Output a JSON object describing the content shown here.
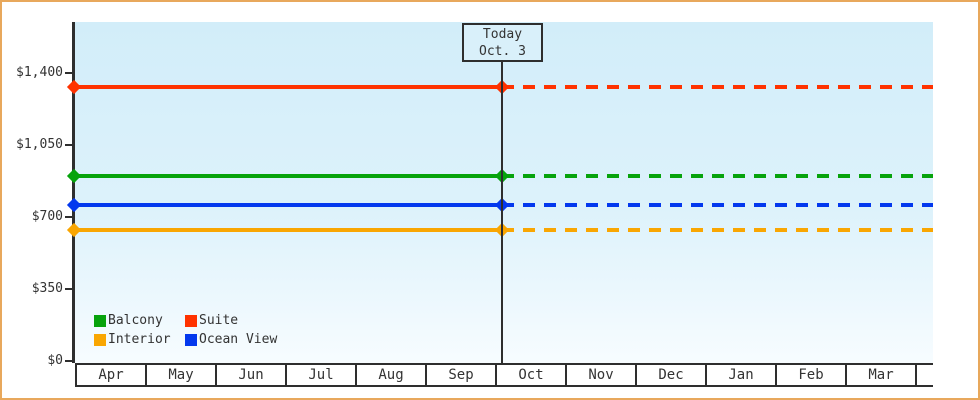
{
  "colors": {
    "frame_border": "#e8a85c",
    "axis": "#2e2e2e",
    "text": "#333333",
    "plot_bg_top": "#d2edf9",
    "plot_bg_bottom": "#f7fcff",
    "today_box_bg": "#d9f0fa"
  },
  "chart_data": {
    "type": "line",
    "title": "",
    "x_categories": [
      "Apr",
      "May",
      "Jun",
      "Jul",
      "Aug",
      "Sep",
      "Oct",
      "Nov",
      "Dec",
      "Jan",
      "Feb",
      "Mar"
    ],
    "y_ticks": [
      {
        "label": "$0",
        "value": 0
      },
      {
        "label": "$350",
        "value": 350
      },
      {
        "label": "$700",
        "value": 700
      },
      {
        "label": "$1,050",
        "value": 1050
      },
      {
        "label": "$1,400",
        "value": 1400
      }
    ],
    "ylim": [
      0,
      1400
    ],
    "grid": false,
    "series": [
      {
        "name": "Balcony",
        "color": "#07a30c",
        "value": 900
      },
      {
        "name": "Suite",
        "color": "#ff3200",
        "value": 1330
      },
      {
        "name": "Interior",
        "color": "#f9a602",
        "value": 637
      },
      {
        "name": "Ocean View",
        "color": "#0338ee",
        "value": 757
      }
    ],
    "line_style": {
      "before_today": "solid",
      "after_today": "dashed",
      "markers": "diamond at axis and at today"
    },
    "today": {
      "line1": "Today",
      "line2": "Oct. 3",
      "month": "Oct",
      "day": 3
    },
    "legend": {
      "position": "bottom-left",
      "rows": [
        [
          "Balcony",
          "Suite"
        ],
        [
          "Interior",
          "Ocean View"
        ]
      ]
    }
  }
}
